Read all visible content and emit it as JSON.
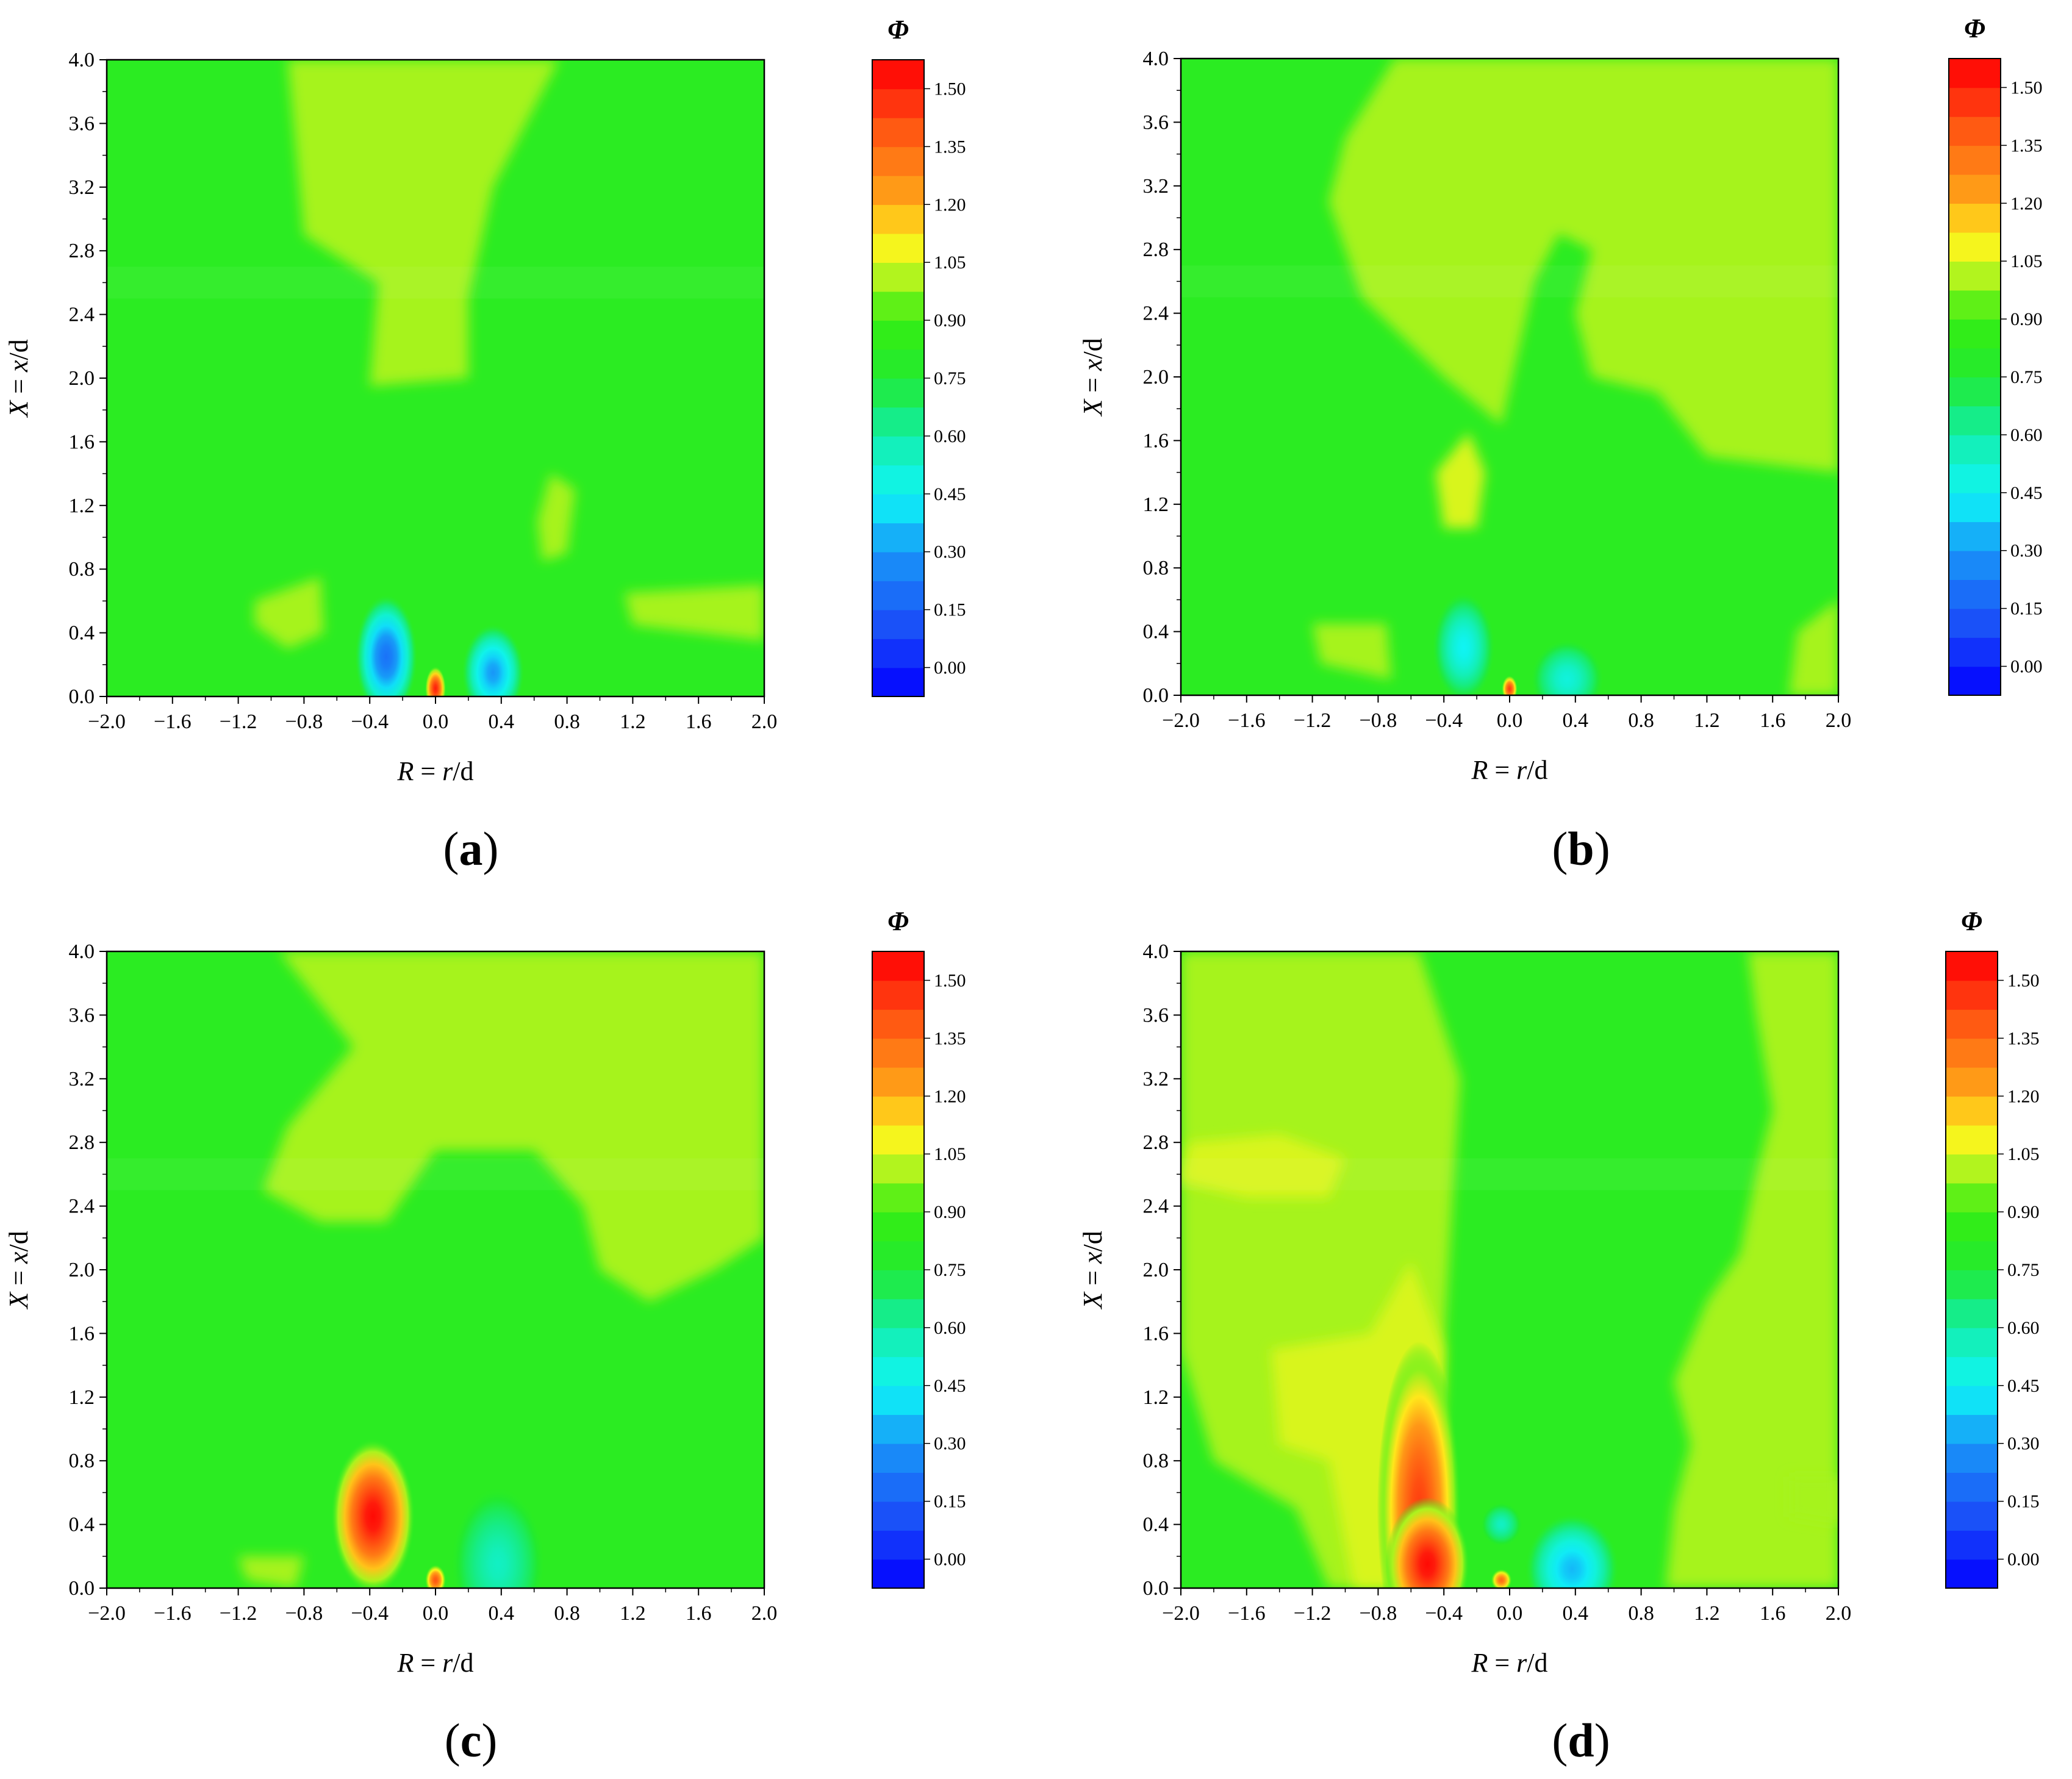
{
  "colors": {
    "base_green": "#35f012",
    "light_green": "#8ef51a",
    "yellow_green": "#c0f51e",
    "cyan": "#10f2ee",
    "blue": "#1e46f8",
    "red": "#ff1a0a",
    "orange": "#ff8a10",
    "yellow": "#fff21a"
  },
  "colorbar": {
    "title": "Φ",
    "ticks": [
      "1.50",
      "1.35",
      "1.20",
      "1.05",
      "0.90",
      "0.75",
      "0.60",
      "0.45",
      "0.30",
      "0.15",
      "0.00"
    ],
    "stops": [
      {
        "v": 1.575,
        "color": "#ff0000"
      },
      {
        "v": 1.5,
        "color": "#ff1e0c"
      },
      {
        "v": 1.425,
        "color": "#ff4a10"
      },
      {
        "v": 1.35,
        "color": "#ff6a14"
      },
      {
        "v": 1.275,
        "color": "#ff8a16"
      },
      {
        "v": 1.2,
        "color": "#ffaa18"
      },
      {
        "v": 1.15,
        "color": "#ffd21a"
      },
      {
        "v": 1.1,
        "color": "#fff51c"
      },
      {
        "v": 1.05,
        "color": "#d8f51e"
      },
      {
        "v": 1.0,
        "color": "#a6f31e"
      },
      {
        "v": 0.95,
        "color": "#6cf018"
      },
      {
        "v": 0.9,
        "color": "#36ee12"
      },
      {
        "v": 0.75,
        "color": "#22ea30"
      },
      {
        "v": 0.65,
        "color": "#16ec80"
      },
      {
        "v": 0.55,
        "color": "#12f0c4"
      },
      {
        "v": 0.45,
        "color": "#10f4f4"
      },
      {
        "v": 0.4,
        "color": "#10dcf8"
      },
      {
        "v": 0.35,
        "color": "#14b8f8"
      },
      {
        "v": 0.3,
        "color": "#1896f8"
      },
      {
        "v": 0.2,
        "color": "#1a72f8"
      },
      {
        "v": 0.1,
        "color": "#1a4cf8"
      },
      {
        "v": -0.075,
        "color": "#0000ff"
      }
    ]
  },
  "chart_data": [
    {
      "type": "heatmap",
      "panel_label": "(a)",
      "xlabel": "R = r/d",
      "ylabel": "X = x/d",
      "xlim": [
        -2.0,
        2.0
      ],
      "ylim": [
        0.0,
        4.0
      ],
      "x_ticks": [
        "−2.0",
        "−1.6",
        "−1.2",
        "−0.8",
        "−0.4",
        "0.0",
        "0.4",
        "0.8",
        "1.2",
        "1.6",
        "2.0"
      ],
      "y_ticks": [
        "0.0",
        "0.4",
        "0.8",
        "1.2",
        "1.6",
        "2.0",
        "2.4",
        "2.8",
        "3.2",
        "3.6",
        "4.0"
      ],
      "colorbar_range": [
        -0.075,
        1.575
      ],
      "features": [
        {
          "kind": "blob",
          "r": -0.3,
          "x": 0.25,
          "rw": 0.12,
          "xh": 0.28,
          "value": 0.2
        },
        {
          "kind": "blob",
          "r": 0.35,
          "x": 0.15,
          "rw": 0.12,
          "xh": 0.22,
          "value": 0.3
        },
        {
          "kind": "blob",
          "r": 0.0,
          "x": 0.05,
          "rw": 0.04,
          "xh": 0.1,
          "value": 1.5
        },
        {
          "kind": "region",
          "polygon": [
            [
              -0.9,
              4.0
            ],
            [
              0.75,
              4.0
            ],
            [
              0.35,
              3.2
            ],
            [
              0.2,
              2.5
            ],
            [
              0.2,
              2.0
            ],
            [
              -0.4,
              1.95
            ],
            [
              -0.35,
              2.6
            ],
            [
              -0.8,
              2.9
            ]
          ],
          "value": 1.0
        },
        {
          "kind": "region",
          "polygon": [
            [
              0.7,
              1.4
            ],
            [
              0.85,
              1.3
            ],
            [
              0.8,
              0.9
            ],
            [
              0.65,
              0.85
            ],
            [
              0.62,
              1.1
            ]
          ],
          "value": 1.0
        },
        {
          "kind": "region",
          "polygon": [
            [
              1.15,
              0.65
            ],
            [
              2.0,
              0.7
            ],
            [
              2.0,
              0.35
            ],
            [
              1.2,
              0.45
            ]
          ],
          "value": 1.0
        },
        {
          "kind": "region",
          "polygon": [
            [
              -1.1,
              0.6
            ],
            [
              -0.7,
              0.75
            ],
            [
              -0.68,
              0.4
            ],
            [
              -0.9,
              0.3
            ],
            [
              -1.1,
              0.45
            ]
          ],
          "value": 1.0
        }
      ]
    },
    {
      "type": "heatmap",
      "panel_label": "(b)",
      "xlabel": "R = r/d",
      "ylabel": "X = x/d",
      "xlim": [
        -2.0,
        2.0
      ],
      "ylim": [
        0.0,
        4.0
      ],
      "x_ticks": [
        "−2.0",
        "−1.6",
        "−1.2",
        "−0.8",
        "−0.4",
        "0.0",
        "0.4",
        "0.8",
        "1.2",
        "1.6",
        "2.0"
      ],
      "y_ticks": [
        "0.0",
        "0.4",
        "0.8",
        "1.2",
        "1.6",
        "2.0",
        "2.4",
        "2.8",
        "3.2",
        "3.6",
        "4.0"
      ],
      "colorbar_range": [
        -0.075,
        1.575
      ],
      "features": [
        {
          "kind": "blob",
          "r": -0.28,
          "x": 0.3,
          "rw": 0.12,
          "xh": 0.25,
          "value": 0.45
        },
        {
          "kind": "blob",
          "r": 0.35,
          "x": 0.1,
          "rw": 0.14,
          "xh": 0.18,
          "value": 0.5
        },
        {
          "kind": "blob",
          "r": 0.0,
          "x": 0.04,
          "rw": 0.03,
          "xh": 0.06,
          "value": 1.45
        },
        {
          "kind": "region",
          "polygon": [
            [
              -0.7,
              4.0
            ],
            [
              2.0,
              4.0
            ],
            [
              2.0,
              1.4
            ],
            [
              1.2,
              1.5
            ],
            [
              0.9,
              1.9
            ],
            [
              0.5,
              2.0
            ],
            [
              0.4,
              2.4
            ],
            [
              0.5,
              2.8
            ],
            [
              0.3,
              2.9
            ],
            [
              0.15,
              2.6
            ],
            [
              -0.05,
              1.7
            ],
            [
              -0.4,
              2.0
            ],
            [
              -0.9,
              2.5
            ],
            [
              -1.1,
              3.1
            ],
            [
              -1.0,
              3.5
            ]
          ],
          "value": 1.0
        },
        {
          "kind": "region",
          "polygon": [
            [
              -0.25,
              1.65
            ],
            [
              -0.15,
              1.4
            ],
            [
              -0.2,
              1.05
            ],
            [
              -0.4,
              1.05
            ],
            [
              -0.45,
              1.4
            ]
          ],
          "value": 1.05
        },
        {
          "kind": "region",
          "polygon": [
            [
              -1.2,
              0.45
            ],
            [
              -0.75,
              0.45
            ],
            [
              -0.72,
              0.1
            ],
            [
              -1.15,
              0.2
            ]
          ],
          "value": 1.0
        },
        {
          "kind": "region",
          "polygon": [
            [
              1.75,
              0.4
            ],
            [
              2.0,
              0.6
            ],
            [
              2.0,
              0.0
            ],
            [
              1.7,
              0.0
            ]
          ],
          "value": 1.0
        }
      ]
    },
    {
      "type": "heatmap",
      "panel_label": "(c)",
      "xlabel": "R = r/d",
      "ylabel": "X = x/d",
      "xlim": [
        -2.0,
        2.0
      ],
      "ylim": [
        0.0,
        4.0
      ],
      "x_ticks": [
        "−2.0",
        "−1.6",
        "−1.2",
        "−0.8",
        "−0.4",
        "0.0",
        "0.4",
        "0.8",
        "1.2",
        "1.6",
        "2.0"
      ],
      "y_ticks": [
        "0.0",
        "0.4",
        "0.8",
        "1.2",
        "1.6",
        "2.0",
        "2.4",
        "2.8",
        "3.2",
        "3.6",
        "4.0"
      ],
      "colorbar_range": [
        -0.075,
        1.575
      ],
      "features": [
        {
          "kind": "blob",
          "r": -0.38,
          "x": 0.45,
          "rw": 0.16,
          "xh": 0.35,
          "value": 1.55
        },
        {
          "kind": "blob",
          "r": 0.38,
          "x": 0.15,
          "rw": 0.18,
          "xh": 0.35,
          "value": 0.55
        },
        {
          "kind": "blob",
          "r": 0.0,
          "x": 0.05,
          "rw": 0.04,
          "xh": 0.07,
          "value": 1.4
        },
        {
          "kind": "region",
          "polygon": [
            [
              -0.95,
              4.0
            ],
            [
              2.0,
              4.0
            ],
            [
              2.0,
              2.2
            ],
            [
              1.7,
              2.0
            ],
            [
              1.3,
              1.8
            ],
            [
              1.0,
              2.0
            ],
            [
              0.9,
              2.4
            ],
            [
              0.6,
              2.75
            ],
            [
              0.0,
              2.75
            ],
            [
              -0.3,
              2.3
            ],
            [
              -0.7,
              2.3
            ],
            [
              -1.05,
              2.5
            ],
            [
              -0.9,
              2.9
            ],
            [
              -0.5,
              3.4
            ]
          ],
          "value": 1.0
        },
        {
          "kind": "region",
          "polygon": [
            [
              -1.2,
              0.2
            ],
            [
              -0.8,
              0.2
            ],
            [
              -0.85,
              0.0
            ],
            [
              -1.15,
              0.05
            ]
          ],
          "value": 1.0
        }
      ]
    },
    {
      "type": "heatmap",
      "panel_label": "(d)",
      "xlabel": "R = r/d",
      "ylabel": "X = x/d",
      "xlim": [
        -2.0,
        2.0
      ],
      "ylim": [
        0.0,
        4.0
      ],
      "x_ticks": [
        "−2.0",
        "−1.6",
        "−1.2",
        "−0.8",
        "−0.4",
        "0.0",
        "0.4",
        "0.8",
        "1.2",
        "1.6",
        "2.0"
      ],
      "y_ticks": [
        "0.0",
        "0.4",
        "0.8",
        "1.2",
        "1.6",
        "2.0",
        "2.4",
        "2.8",
        "3.2",
        "3.6",
        "4.0"
      ],
      "colorbar_range": [
        -0.075,
        1.575
      ],
      "features": [
        {
          "kind": "region",
          "polygon": [
            [
              -2.0,
              4.0
            ],
            [
              -0.55,
              4.0
            ],
            [
              -0.3,
              3.2
            ],
            [
              -0.35,
              2.4
            ],
            [
              -0.4,
              1.5
            ],
            [
              -0.45,
              0.0
            ],
            [
              -1.1,
              0.0
            ],
            [
              -1.3,
              0.5
            ],
            [
              -1.8,
              0.8
            ],
            [
              -2.0,
              1.5
            ]
          ],
          "value": 1.0
        },
        {
          "kind": "region",
          "polygon": [
            [
              1.45,
              4.0
            ],
            [
              2.0,
              4.0
            ],
            [
              2.0,
              0.0
            ],
            [
              0.95,
              0.0
            ],
            [
              1.0,
              0.5
            ],
            [
              1.1,
              0.9
            ],
            [
              1.0,
              1.3
            ],
            [
              1.2,
              1.8
            ],
            [
              1.4,
              2.1
            ],
            [
              1.5,
              2.6
            ],
            [
              1.6,
              3.0
            ],
            [
              1.5,
              3.6
            ]
          ],
          "value": 1.0
        },
        {
          "kind": "region",
          "polygon": [
            [
              -1.95,
              2.8
            ],
            [
              -1.4,
              2.85
            ],
            [
              -1.0,
              2.7
            ],
            [
              -1.1,
              2.45
            ],
            [
              -1.6,
              2.45
            ],
            [
              -2.0,
              2.55
            ]
          ],
          "value": 1.05
        },
        {
          "kind": "region",
          "polygon": [
            [
              -1.45,
              1.5
            ],
            [
              -0.85,
              1.6
            ],
            [
              -0.6,
              2.05
            ],
            [
              -0.4,
              1.5
            ],
            [
              -0.45,
              0.0
            ],
            [
              -0.95,
              0.0
            ],
            [
              -1.1,
              0.8
            ],
            [
              -1.4,
              0.9
            ]
          ],
          "value": 1.05
        },
        {
          "kind": "blob",
          "r": -0.55,
          "x": 0.5,
          "rw": 0.16,
          "xh": 0.75,
          "value": 1.45
        },
        {
          "kind": "blob",
          "r": -0.5,
          "x": 0.15,
          "rw": 0.16,
          "xh": 0.3,
          "value": 1.55
        },
        {
          "kind": "blob",
          "r": 0.38,
          "x": 0.12,
          "rw": 0.18,
          "xh": 0.25,
          "value": 0.35
        },
        {
          "kind": "blob",
          "r": -0.05,
          "x": 0.4,
          "rw": 0.08,
          "xh": 0.1,
          "value": 0.55
        },
        {
          "kind": "blob",
          "r": -0.05,
          "x": 0.05,
          "rw": 0.04,
          "xh": 0.05,
          "value": 1.35
        },
        {
          "kind": "region",
          "polygon": [
            [
              1.7,
              0.7
            ],
            [
              2.0,
              0.7
            ],
            [
              2.0,
              0.4
            ],
            [
              1.7,
              0.45
            ]
          ],
          "value": 1.0
        }
      ]
    }
  ]
}
